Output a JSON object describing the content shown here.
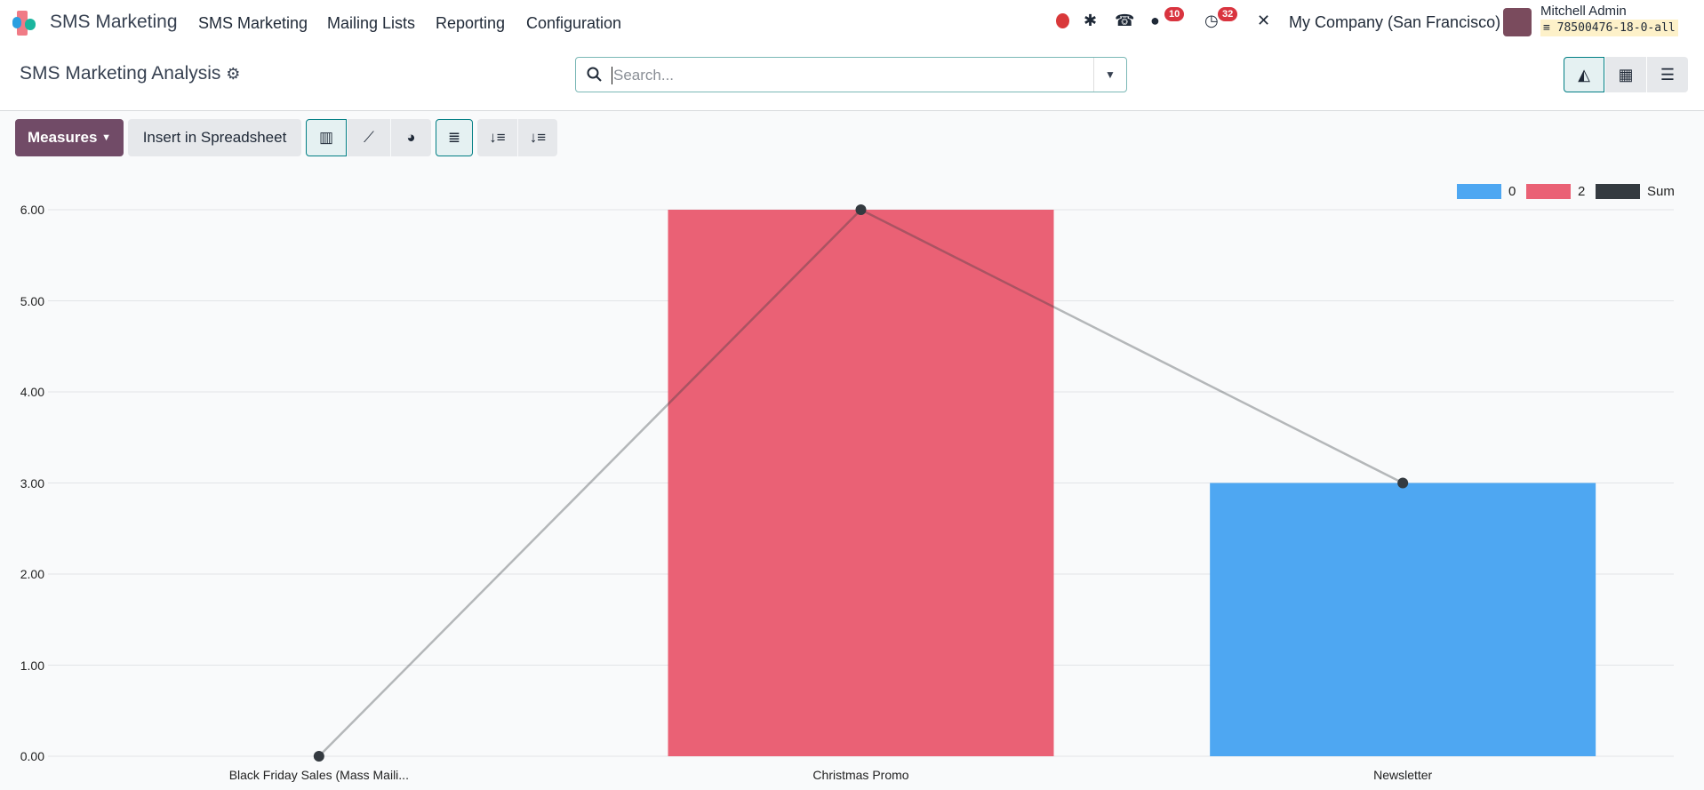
{
  "navbar": {
    "app_name": "SMS Marketing",
    "menu": [
      "SMS Marketing",
      "Mailing Lists",
      "Reporting",
      "Configuration"
    ],
    "icons": [
      "record-icon",
      "bug-icon",
      "phone-icon",
      "chat-icon",
      "clock-icon",
      "tools-icon"
    ],
    "chat_badge": "10",
    "activity_badge": "32",
    "company": "My Company (San Francisco)",
    "user_name": "Mitchell Admin",
    "database": "78500476-18-0-all"
  },
  "control_panel": {
    "title": "SMS Marketing Analysis",
    "search_placeholder": "Search..."
  },
  "toolbar": {
    "measures": "Measures",
    "insert_spreadsheet": "Insert in Spreadsheet"
  },
  "colors": {
    "series_0": "#4ea7f2",
    "series_2": "#ea6175",
    "sum": "#343a40",
    "accent": "#714b67"
  },
  "chart_data": {
    "type": "bar",
    "categories": [
      "Black Friday Sales (Mass Maili...",
      "Christmas Promo",
      "Newsletter"
    ],
    "series": [
      {
        "name": "0",
        "values": [
          0,
          0,
          3
        ],
        "color": "#4ea7f2"
      },
      {
        "name": "2",
        "values": [
          0,
          6,
          0
        ],
        "color": "#ea6175"
      },
      {
        "name": "Sum",
        "type": "line",
        "values": [
          0,
          6,
          3
        ],
        "color": "#343a40"
      }
    ],
    "yticks": [
      "0.00",
      "1.00",
      "2.00",
      "3.00",
      "4.00",
      "5.00",
      "6.00"
    ],
    "ylim": [
      0,
      6
    ],
    "grid": true,
    "legend": "top-right",
    "stacked": true
  }
}
